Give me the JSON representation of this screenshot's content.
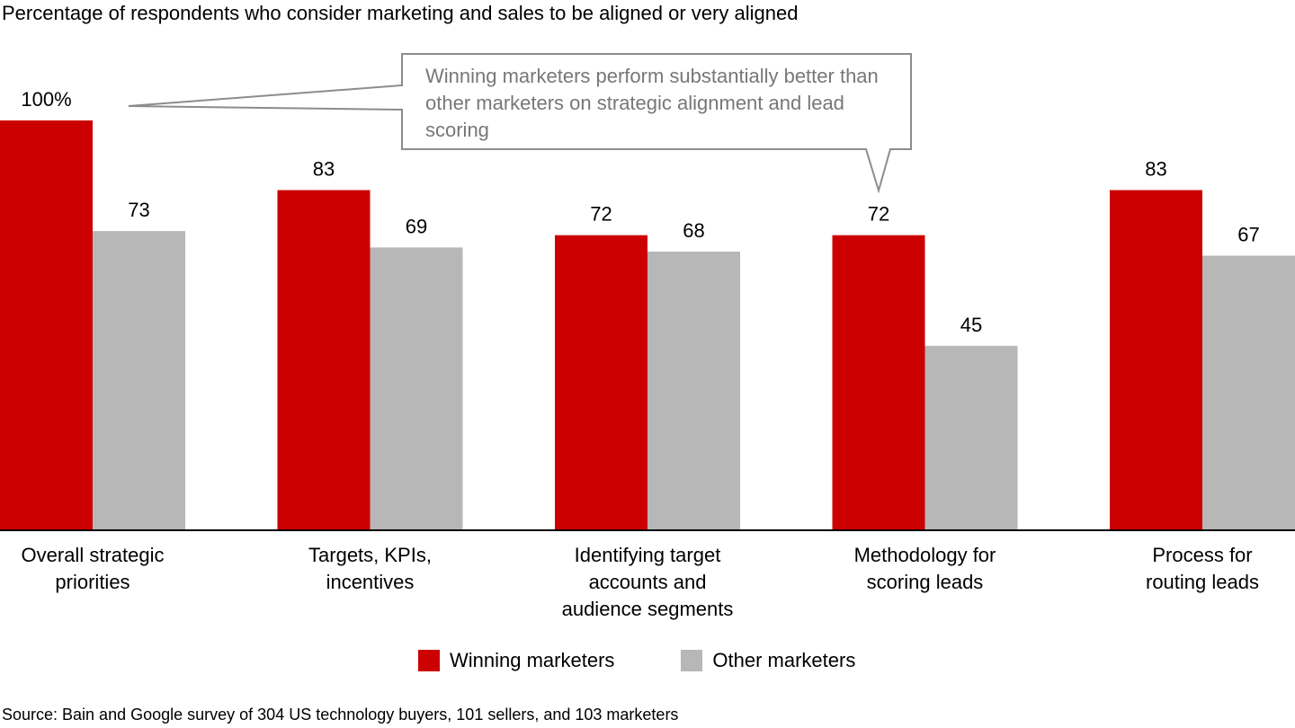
{
  "subtitle": "Percentage of respondents who consider marketing and sales to be aligned or very aligned",
  "source": "Source: Bain and Google survey of 304 US technology buyers, 101 sellers, and 103 marketers",
  "callout": "Winning marketers perform substantially better than other marketers on strategic alignment and lead scoring",
  "colors": {
    "winning": "#cc0000",
    "other": "#b7b7b7",
    "axis": "#000000",
    "callout_border": "#8c8c8c"
  },
  "chart_data": {
    "type": "bar",
    "categories": [
      "Overall strategic priorities",
      "Targets, KPIs, incentives",
      "Identifying target accounts and audience segments",
      "Methodology for scoring leads",
      "Process for routing leads"
    ],
    "series": [
      {
        "name": "Winning marketers",
        "values": [
          100,
          83,
          72,
          72,
          83
        ],
        "labels": [
          "100%",
          "83",
          "72",
          "72",
          "83"
        ]
      },
      {
        "name": "Other marketers",
        "values": [
          73,
          69,
          68,
          45,
          67
        ],
        "labels": [
          "73",
          "69",
          "68",
          "45",
          "67"
        ]
      }
    ],
    "ylim": [
      0,
      100
    ],
    "grid": false,
    "legend": "bottom"
  }
}
